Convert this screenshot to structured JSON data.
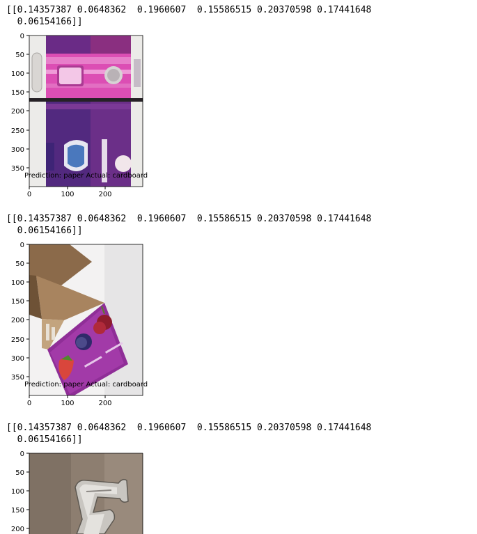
{
  "outputs": [
    {
      "array_line1": "[[0.14357387 0.0648362  0.1960607  0.15586515 0.20370598 0.17441648",
      "array_line2": "  0.06154166]]",
      "image_subject": "pink and purple pads box",
      "y_ticks": [
        "0",
        "50",
        "100",
        "150",
        "200",
        "250",
        "300",
        "350"
      ],
      "x_ticks": [
        "0",
        "100",
        "200"
      ],
      "caption": "Prediction: paper Actual: cardboard"
    },
    {
      "array_line1": "[[0.14357387 0.0648362  0.1960607  0.15586515 0.20370598 0.17441648",
      "array_line2": "  0.06154166]]",
      "image_subject": "open cardboard box with purple fruit lid",
      "y_ticks": [
        "0",
        "50",
        "100",
        "150",
        "200",
        "250",
        "300",
        "350"
      ],
      "x_ticks": [
        "0",
        "100",
        "200"
      ],
      "caption": "Prediction: paper Actual: cardboard"
    },
    {
      "array_line1": "[[0.14357387 0.0648362  0.1960607  0.15586515 0.20370598 0.17441648",
      "array_line2": "  0.06154166]]",
      "image_subject": "metal bracket on brown background",
      "y_ticks": [
        "0",
        "50",
        "100",
        "150",
        "200"
      ],
      "x_ticks": [],
      "caption": ""
    }
  ],
  "colors": {
    "text": "#000000",
    "background": "#ffffff",
    "axis": "#000000"
  }
}
